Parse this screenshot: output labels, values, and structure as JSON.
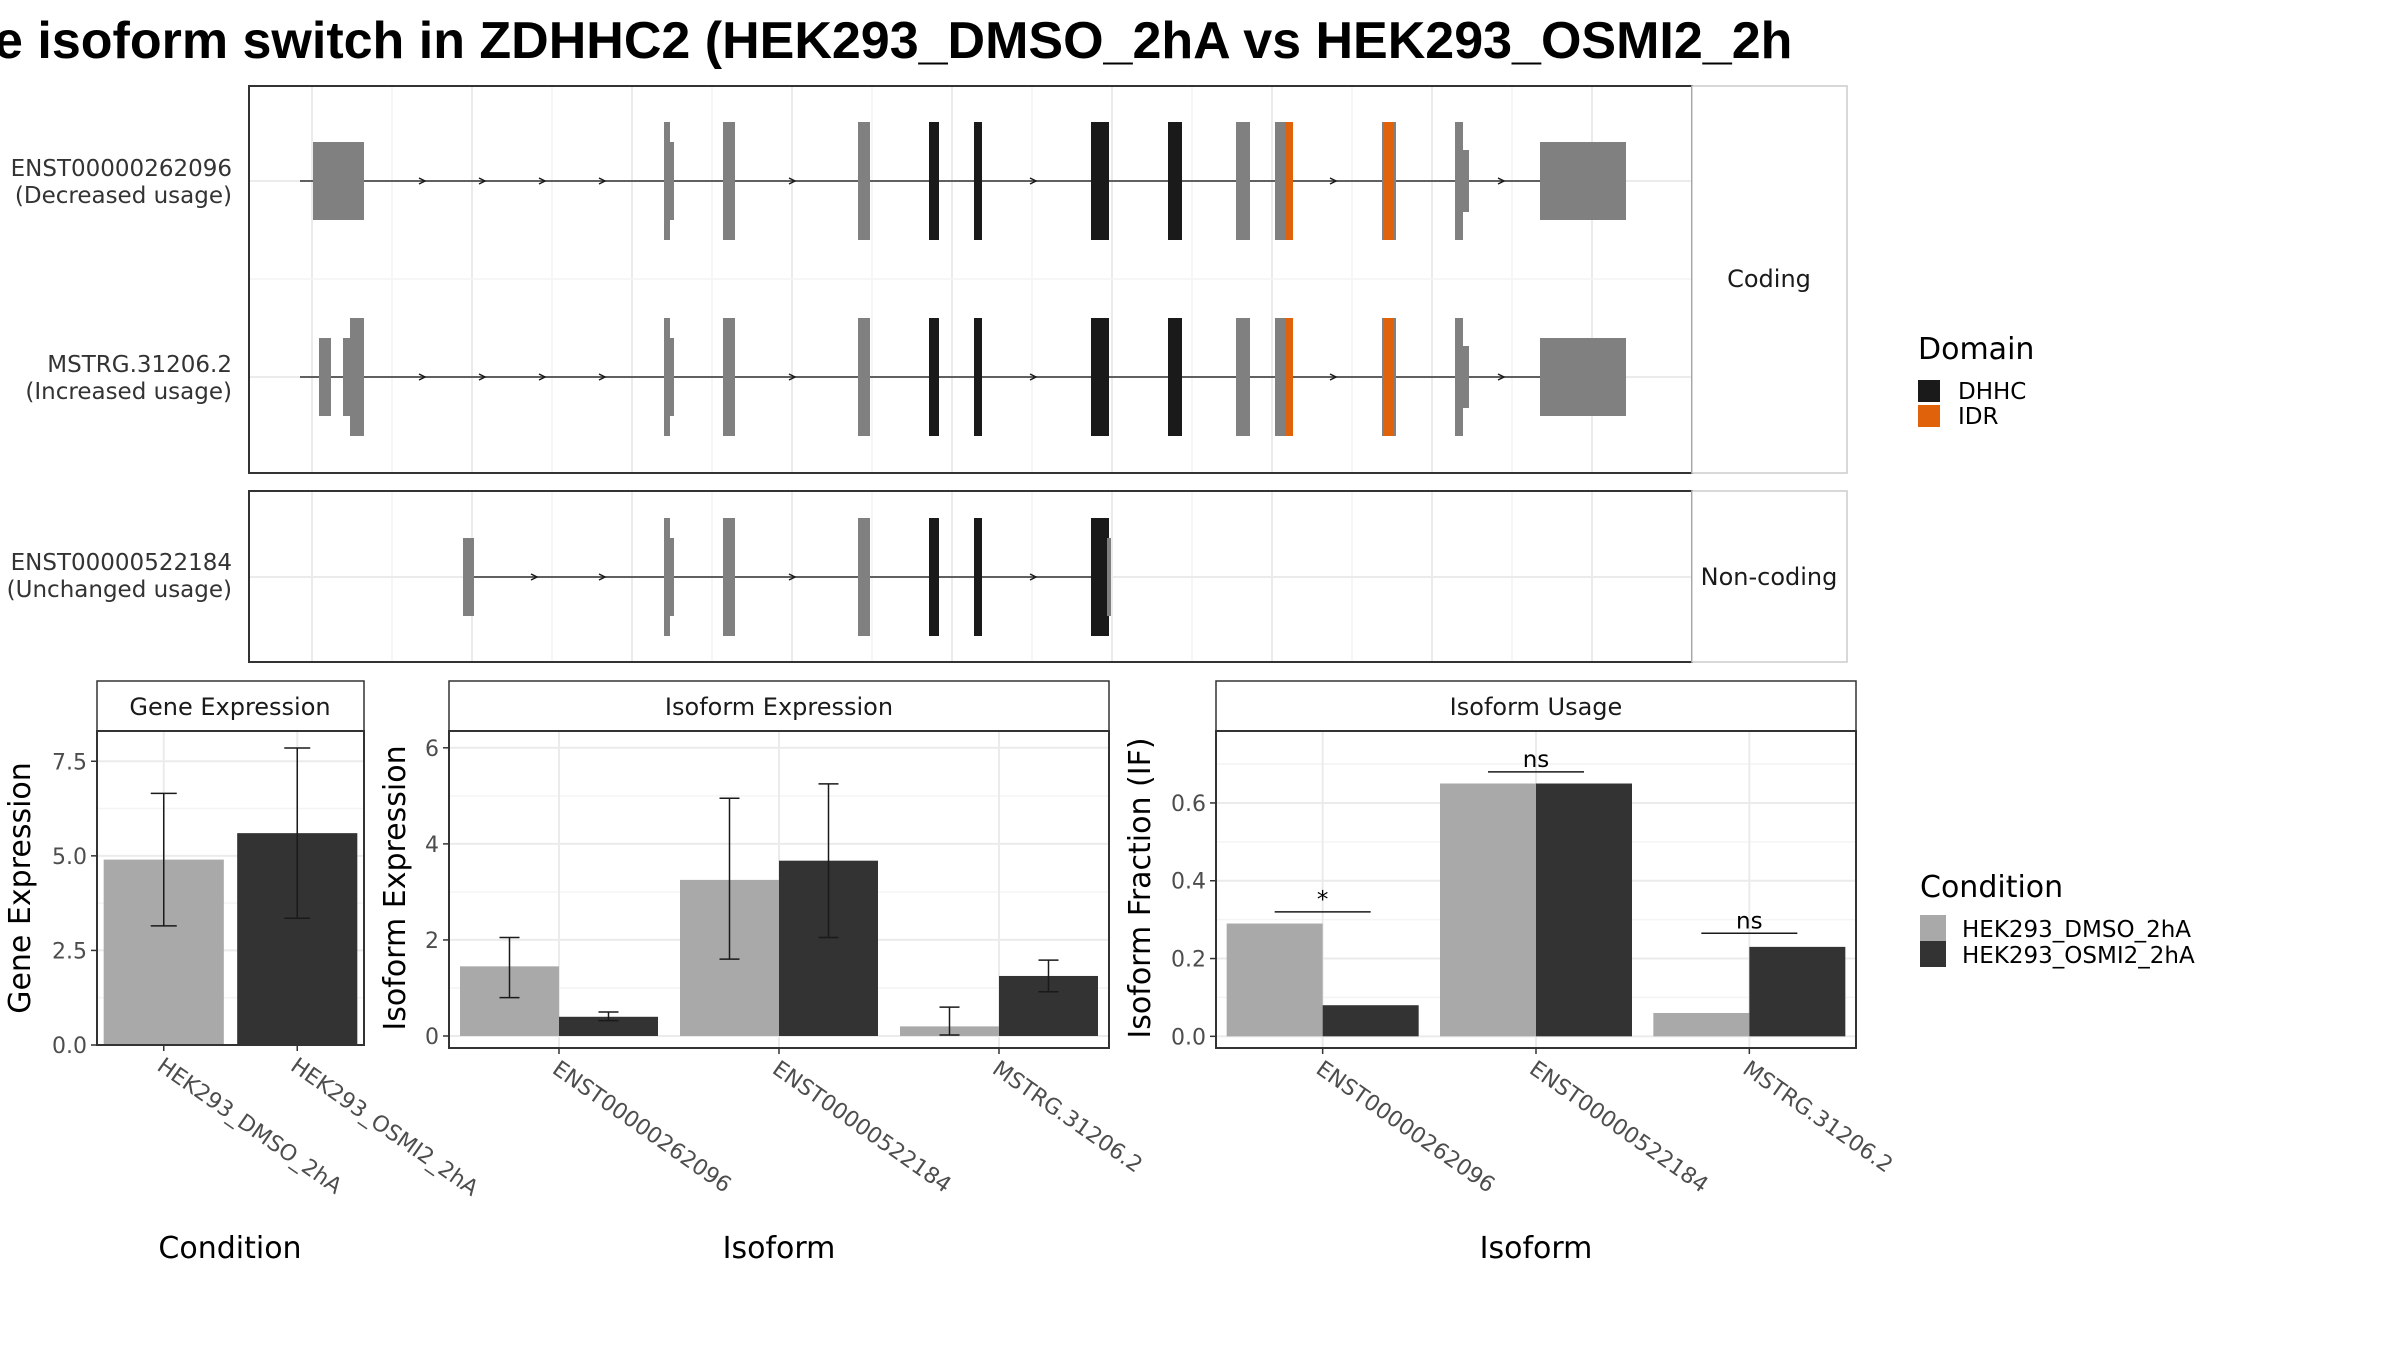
{
  "title": "e isoform switch in ZDHHC2 (HEK293_DMSO_2hA vs HEK293_OSMI2_2h",
  "colors": {
    "dmso": "#a9a9a9",
    "osmi": "#333333",
    "exon": "#808080",
    "dhhc": "#1a1a1a",
    "idr": "#e0630b",
    "grid": "#ebebeb",
    "border": "#333333"
  },
  "structure": {
    "coding_panel_label": "Coding",
    "noncoding_panel_label": "Non-coding",
    "transcripts": [
      {
        "id": "ENST00000262096",
        "usage": "(Decreased usage)",
        "group": "Coding"
      },
      {
        "id": "MSTRG.31206.2",
        "usage": "(Increased usage)",
        "group": "Coding"
      },
      {
        "id": "ENST00000522184",
        "usage": "(Unchanged usage)",
        "group": "Non-coding"
      }
    ],
    "legend": {
      "title": "Domain",
      "items": [
        {
          "label": "DHHC",
          "color": "#1a1a1a"
        },
        {
          "label": "IDR",
          "color": "#e0630b"
        }
      ]
    }
  },
  "chart_data": [
    {
      "type": "bar",
      "title": "Gene Expression",
      "xlabel": "Condition",
      "ylabel": "Gene Expression",
      "categories": [
        "HEK293_DMSO_2hA",
        "HEK293_OSMI2_2hA"
      ],
      "values": [
        4.9,
        5.6
      ],
      "error_low": [
        3.15,
        3.35
      ],
      "error_high": [
        6.65,
        7.85
      ],
      "ylim": [
        0,
        8.3
      ],
      "yticks": [
        "0.0",
        "2.5",
        "5.0",
        "7.5"
      ],
      "ytick_values": [
        0,
        2.5,
        5,
        7.5
      ],
      "grid": true
    },
    {
      "type": "bar",
      "title": "Isoform Expression",
      "xlabel": "Isoform",
      "ylabel": "Isoform Expression",
      "categories": [
        "ENST00000262096",
        "ENST00000522184",
        "MSTRG.31206.2"
      ],
      "series": [
        {
          "name": "HEK293_DMSO_2hA",
          "values": [
            1.45,
            3.25,
            0.2
          ],
          "error_low": [
            0.8,
            1.6,
            0.02
          ],
          "error_high": [
            2.05,
            4.95,
            0.6
          ]
        },
        {
          "name": "HEK293_OSMI2_2hA",
          "values": [
            0.4,
            3.65,
            1.25
          ],
          "error_low": [
            0.32,
            2.05,
            0.92
          ],
          "error_high": [
            0.5,
            5.25,
            1.58
          ]
        }
      ],
      "ylim": [
        -0.25,
        6.35
      ],
      "yticks": [
        "0",
        "2",
        "4",
        "6"
      ],
      "ytick_values": [
        0,
        2,
        4,
        6
      ],
      "grid": true
    },
    {
      "type": "bar",
      "title": "Isoform Usage",
      "xlabel": "Isoform",
      "ylabel": "Isoform Fraction (IF)",
      "categories": [
        "ENST00000262096",
        "ENST00000522184",
        "MSTRG.31206.2"
      ],
      "series": [
        {
          "name": "HEK293_DMSO_2hA",
          "values": [
            0.29,
            0.65,
            0.06
          ]
        },
        {
          "name": "HEK293_OSMI2_2hA",
          "values": [
            0.08,
            0.65,
            0.23
          ]
        }
      ],
      "significance": [
        "*",
        "ns",
        "ns"
      ],
      "significance_y": [
        0.32,
        0.68,
        0.265
      ],
      "ylim": [
        -0.03,
        0.785
      ],
      "yticks": [
        "0.0",
        "0.2",
        "0.4",
        "0.6"
      ],
      "ytick_values": [
        0,
        0.2,
        0.4,
        0.6
      ],
      "grid": true
    }
  ],
  "condition_legend": {
    "title": "Condition",
    "items": [
      {
        "label": "HEK293_DMSO_2hA",
        "color": "#a9a9a9"
      },
      {
        "label": "HEK293_OSMI2_2hA",
        "color": "#333333"
      }
    ]
  }
}
